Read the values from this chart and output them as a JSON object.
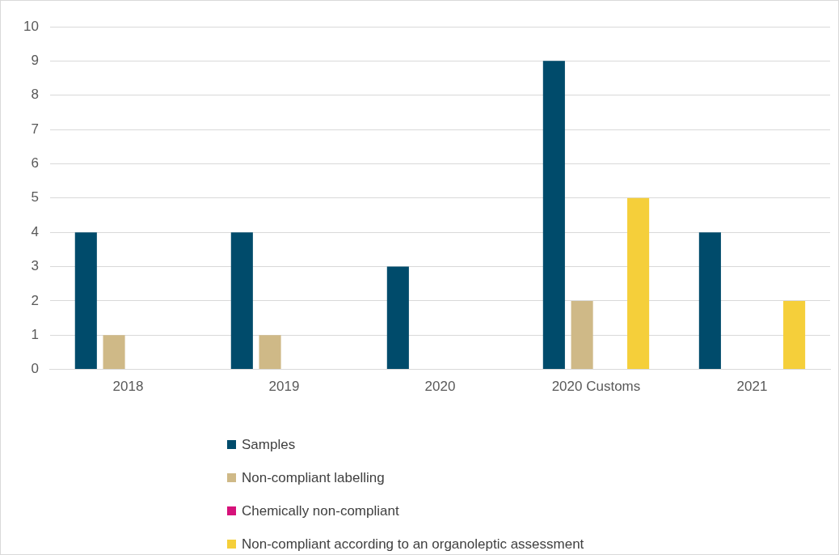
{
  "chart_data": {
    "type": "bar",
    "categories": [
      "2018",
      "2019",
      "2020",
      "2020 Customs",
      "2021"
    ],
    "series": [
      {
        "name": "Samples",
        "color": "#004b6b",
        "values": [
          4,
          4,
          3,
          9,
          4
        ]
      },
      {
        "name": "Non-compliant labelling",
        "color": "#cfb987",
        "values": [
          1,
          1,
          0,
          2,
          0
        ]
      },
      {
        "name": "Chemically non-compliant",
        "color": "#d6127a",
        "values": [
          0,
          0,
          0,
          0,
          0
        ]
      },
      {
        "name": "Non-compliant according to an organoleptic assessment",
        "color": "#f5cf3a",
        "values": [
          0,
          0,
          0,
          5,
          2
        ]
      }
    ],
    "ylim": [
      0,
      10
    ],
    "yticks": [
      0,
      1,
      2,
      3,
      4,
      5,
      6,
      7,
      8,
      9,
      10
    ],
    "grid": "y",
    "legend": "bottom"
  }
}
